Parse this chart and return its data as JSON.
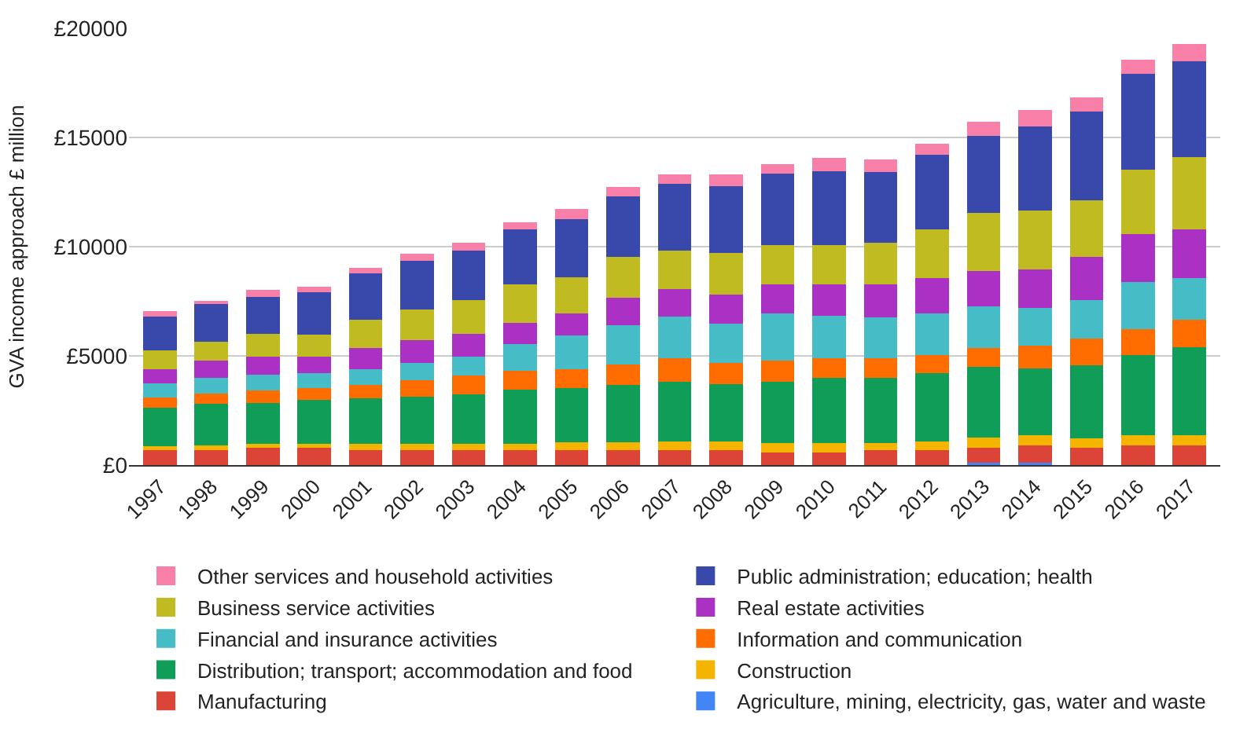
{
  "chart_data": {
    "type": "bar",
    "stacked": true,
    "ylabel": "GVA income approach £ million",
    "categories": [
      "1997",
      "1998",
      "1999",
      "2000",
      "2001",
      "2002",
      "2003",
      "2004",
      "2005",
      "2006",
      "2007",
      "2008",
      "2009",
      "2010",
      "2011",
      "2012",
      "2013",
      "2014",
      "2015",
      "2016",
      "2017"
    ],
    "series": [
      {
        "name": "Agriculture, mining, electricity, gas, water and waste",
        "color": "#4285f4",
        "values": [
          null,
          null,
          null,
          null,
          null,
          null,
          null,
          null,
          null,
          null,
          null,
          null,
          null,
          null,
          null,
          null,
          110,
          110,
          null,
          null,
          null
        ]
      },
      {
        "name": "Manufacturing",
        "color": "#db4437",
        "values": [
          670,
          670,
          780,
          800,
          670,
          670,
          670,
          670,
          670,
          670,
          670,
          670,
          570,
          570,
          670,
          670,
          690,
          800,
          780,
          890,
          890
        ]
      },
      {
        "name": "Construction",
        "color": "#f4b400",
        "values": [
          180,
          230,
          180,
          160,
          300,
          300,
          300,
          300,
          370,
          370,
          410,
          410,
          430,
          430,
          340,
          410,
          460,
          460,
          460,
          460,
          460
        ]
      },
      {
        "name": "Distribution; transport; accommodation and food",
        "color": "#0f9d58",
        "values": [
          1760,
          1900,
          1900,
          2010,
          2100,
          2170,
          2280,
          2470,
          2490,
          2630,
          2740,
          2630,
          2810,
          2990,
          2990,
          3130,
          3240,
          3040,
          3330,
          3700,
          4060
        ]
      },
      {
        "name": "Information and communication",
        "color": "#ff6d01",
        "values": [
          480,
          460,
          570,
          570,
          590,
          750,
          850,
          870,
          870,
          940,
          1070,
          980,
          960,
          890,
          890,
          840,
          870,
          1070,
          1230,
          1170,
          1260
        ]
      },
      {
        "name": "Financial and insurance activities",
        "color": "#46bdc6",
        "values": [
          640,
          750,
          690,
          660,
          730,
          800,
          870,
          1230,
          1530,
          1780,
          1900,
          1800,
          2170,
          1960,
          1870,
          1900,
          1900,
          1710,
          1740,
          2170,
          1900
        ]
      },
      {
        "name": "Real estate activities",
        "color": "#ab30c4",
        "values": [
          660,
          780,
          850,
          750,
          960,
          1030,
          1030,
          960,
          1030,
          1260,
          1260,
          1320,
          1320,
          1420,
          1510,
          1620,
          1600,
          1780,
          1990,
          2170,
          2220
        ]
      },
      {
        "name": "Business service activities",
        "color": "#c1bb22",
        "values": [
          850,
          840,
          1030,
          1030,
          1320,
          1420,
          1550,
          1780,
          1640,
          1900,
          1780,
          1920,
          1830,
          1830,
          1920,
          2220,
          2670,
          2670,
          2580,
          2970,
          3310
        ]
      },
      {
        "name": "Public administration; education; health",
        "color": "#3949ab",
        "values": [
          1550,
          1740,
          1710,
          1940,
          2100,
          2210,
          2280,
          2510,
          2650,
          2760,
          3060,
          3040,
          3240,
          3360,
          3220,
          3420,
          3540,
          3880,
          4090,
          4380,
          4380
        ]
      },
      {
        "name": "Other services and household activities",
        "color": "#f77fa8",
        "values": [
          270,
          160,
          300,
          230,
          270,
          340,
          340,
          340,
          460,
          430,
          410,
          530,
          460,
          620,
          570,
          500,
          640,
          750,
          640,
          640,
          800
        ]
      }
    ],
    "ylim": [
      0,
      20000
    ],
    "yticks": [
      {
        "value": 0,
        "label": "£0"
      },
      {
        "value": 5000,
        "label": "£5000"
      },
      {
        "value": 10000,
        "label": "£10000"
      },
      {
        "value": 15000,
        "label": "£15000"
      },
      {
        "value": 20000,
        "label": "£20000"
      }
    ],
    "grid": "y",
    "legend": "bottom"
  }
}
